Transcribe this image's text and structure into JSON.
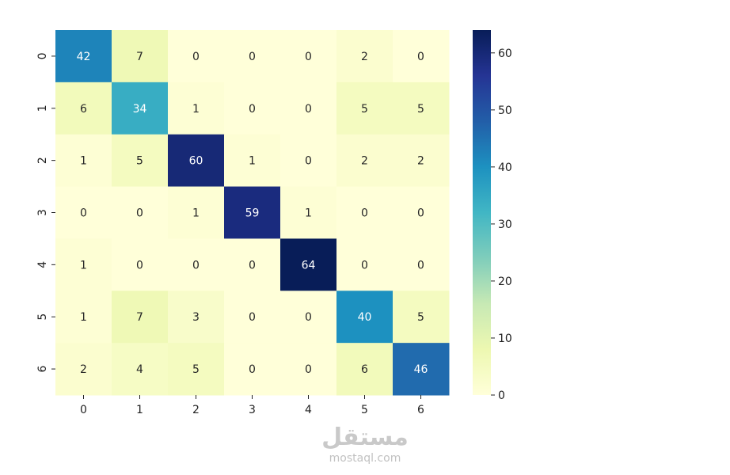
{
  "chart_data": {
    "type": "heatmap",
    "title": "",
    "xlabel": "",
    "ylabel": "",
    "x_categories": [
      "0",
      "1",
      "2",
      "3",
      "4",
      "5",
      "6"
    ],
    "y_categories": [
      "0",
      "1",
      "2",
      "3",
      "4",
      "5",
      "6"
    ],
    "values": [
      [
        42,
        7,
        0,
        0,
        0,
        2,
        0
      ],
      [
        6,
        34,
        1,
        0,
        0,
        5,
        5
      ],
      [
        1,
        5,
        60,
        1,
        0,
        2,
        2
      ],
      [
        0,
        0,
        1,
        59,
        1,
        0,
        0
      ],
      [
        1,
        0,
        0,
        0,
        64,
        0,
        0
      ],
      [
        1,
        7,
        3,
        0,
        0,
        40,
        5
      ],
      [
        2,
        4,
        5,
        0,
        0,
        6,
        46
      ]
    ],
    "colormap": "YlGnBu",
    "colormap_stops": [
      "#ffffd9",
      "#edf8b1",
      "#c7e9b4",
      "#7fcdbb",
      "#41b6c4",
      "#1d91c0",
      "#225ea8",
      "#253494",
      "#081d58"
    ],
    "colorbar": {
      "min": 0,
      "max": 64,
      "ticks": [
        0,
        10,
        20,
        30,
        40,
        50,
        60
      ]
    }
  },
  "watermark": {
    "arabic": "مستقل",
    "latin": "mostaql.com"
  }
}
